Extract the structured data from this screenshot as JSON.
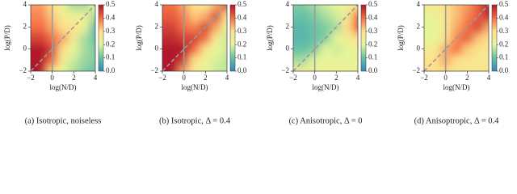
{
  "chart_data": [
    {
      "type": "contour",
      "xlabel": "log(N/D)",
      "ylabel": "log(P/D)",
      "caption": "(a) Isotropic, noiseless",
      "xlim": [
        -2,
        4
      ],
      "ylim": [
        -2,
        4
      ],
      "xticks": [
        {
          "value": -2,
          "label": "−2"
        },
        0,
        2,
        4
      ],
      "yticks": [
        {
          "value": -2,
          "label": "−2"
        },
        0,
        2,
        4
      ],
      "clim": [
        0,
        0.5
      ],
      "cticks": [
        {
          "value": 0,
          "label": "0.0"
        },
        0.1,
        0.2,
        0.3,
        0.4,
        0.5
      ],
      "colorscale": [
        "#3288bd",
        "#66c2a5",
        "#e6f598",
        "#fee08b",
        "#f46d43",
        "#b2182b"
      ],
      "vline": 0,
      "diagonal": true,
      "x": [
        -2,
        -1,
        0,
        1,
        2,
        3,
        4
      ],
      "y": [
        -2,
        -1,
        0,
        1,
        2,
        3,
        4
      ],
      "z": [
        [
          0.5,
          0.5,
          0.3,
          0.2,
          0.15,
          0.12,
          0.1
        ],
        [
          0.5,
          0.5,
          0.4,
          0.25,
          0.18,
          0.14,
          0.12
        ],
        [
          0.5,
          0.5,
          0.45,
          0.3,
          0.2,
          0.15,
          0.12
        ],
        [
          0.45,
          0.45,
          0.4,
          0.35,
          0.25,
          0.15,
          0.1
        ],
        [
          0.4,
          0.4,
          0.35,
          0.3,
          0.3,
          0.2,
          0.08
        ],
        [
          0.38,
          0.38,
          0.32,
          0.25,
          0.22,
          0.25,
          0.15
        ],
        [
          0.36,
          0.36,
          0.3,
          0.22,
          0.15,
          0.15,
          0.2
        ]
      ]
    },
    {
      "type": "contour",
      "xlabel": "log(N/D)",
      "ylabel": "log(P/D)",
      "caption": "(b) Isotropic, Δ = 0.4",
      "xlim": [
        -2,
        4
      ],
      "ylim": [
        -2,
        4
      ],
      "xticks": [
        {
          "value": -2,
          "label": "−2"
        },
        0,
        2,
        4
      ],
      "yticks": [
        {
          "value": -2,
          "label": "−2"
        },
        0,
        2,
        4
      ],
      "clim": [
        0,
        0.5
      ],
      "cticks": [
        {
          "value": 0,
          "label": "0.0"
        },
        0.1,
        0.2,
        0.3,
        0.4,
        0.5
      ],
      "colorscale": [
        "#3288bd",
        "#66c2a5",
        "#e6f598",
        "#fee08b",
        "#f46d43",
        "#b2182b"
      ],
      "vline": 0,
      "diagonal": true,
      "x": [
        -2,
        -1,
        0,
        1,
        2,
        3,
        4
      ],
      "y": [
        -2,
        -1,
        0,
        1,
        2,
        3,
        4
      ],
      "z": [
        [
          0.5,
          0.5,
          0.35,
          0.25,
          0.2,
          0.18,
          0.16
        ],
        [
          0.5,
          0.5,
          0.45,
          0.3,
          0.22,
          0.19,
          0.17
        ],
        [
          0.5,
          0.5,
          0.5,
          0.4,
          0.28,
          0.2,
          0.18
        ],
        [
          0.48,
          0.48,
          0.45,
          0.45,
          0.4,
          0.25,
          0.18
        ],
        [
          0.45,
          0.45,
          0.4,
          0.38,
          0.45,
          0.35,
          0.2
        ],
        [
          0.42,
          0.42,
          0.38,
          0.32,
          0.35,
          0.45,
          0.3
        ],
        [
          0.4,
          0.4,
          0.35,
          0.3,
          0.28,
          0.35,
          0.45
        ]
      ]
    },
    {
      "type": "contour",
      "xlabel": "log(N/D)",
      "ylabel": "log(P/D)",
      "caption": "(c) Anisotropic, Δ = 0",
      "xlim": [
        -2,
        4
      ],
      "ylim": [
        -2,
        4
      ],
      "xticks": [
        {
          "value": -2,
          "label": "−2"
        },
        0,
        2,
        4
      ],
      "yticks": [
        {
          "value": -2,
          "label": "−2"
        },
        0,
        2,
        4
      ],
      "clim": [
        0,
        0.5
      ],
      "cticks": [
        {
          "value": 0,
          "label": "0.0"
        },
        0.1,
        0.2,
        0.3,
        0.4,
        0.5
      ],
      "colorscale": [
        "#3288bd",
        "#66c2a5",
        "#e6f598",
        "#fee08b",
        "#f46d43",
        "#b2182b"
      ],
      "vline": 0,
      "diagonal": true,
      "x": [
        -2,
        -1,
        0,
        1,
        2,
        3,
        4
      ],
      "y": [
        -2,
        -1,
        0,
        1,
        2,
        3,
        4
      ],
      "z": [
        [
          0.25,
          0.25,
          0.22,
          0.22,
          0.22,
          0.22,
          0.22
        ],
        [
          0.15,
          0.15,
          0.2,
          0.2,
          0.2,
          0.2,
          0.2
        ],
        [
          0.1,
          0.1,
          0.12,
          0.2,
          0.18,
          0.2,
          0.22
        ],
        [
          0.08,
          0.08,
          0.1,
          0.12,
          0.2,
          0.25,
          0.3
        ],
        [
          0.08,
          0.08,
          0.1,
          0.12,
          0.15,
          0.3,
          0.42
        ],
        [
          0.1,
          0.1,
          0.12,
          0.15,
          0.18,
          0.25,
          0.4
        ],
        [
          0.12,
          0.12,
          0.15,
          0.18,
          0.2,
          0.22,
          0.3
        ]
      ]
    },
    {
      "type": "contour",
      "xlabel": "log(N/D)",
      "ylabel": "log(P/D)",
      "caption": "(d) Anisoptropic, Δ = 0.4",
      "xlim": [
        -2,
        4
      ],
      "ylim": [
        -2,
        4
      ],
      "xticks": [
        {
          "value": -2,
          "label": "−2"
        },
        0,
        2,
        4
      ],
      "yticks": [
        {
          "value": -2,
          "label": "−2"
        },
        0,
        2,
        4
      ],
      "clim": [
        0,
        0.5
      ],
      "cticks": [
        {
          "value": 0,
          "label": "0.0"
        },
        0.1,
        0.2,
        0.3,
        0.4,
        0.5
      ],
      "colorscale": [
        "#3288bd",
        "#66c2a5",
        "#e6f598",
        "#fee08b",
        "#f46d43",
        "#b2182b"
      ],
      "vline": 0,
      "diagonal": true,
      "x": [
        -2,
        -1,
        0,
        1,
        2,
        3,
        4
      ],
      "y": [
        -2,
        -1,
        0,
        1,
        2,
        3,
        4
      ],
      "z": [
        [
          0.3,
          0.3,
          0.3,
          0.28,
          0.27,
          0.27,
          0.27
        ],
        [
          0.3,
          0.3,
          0.35,
          0.3,
          0.28,
          0.27,
          0.27
        ],
        [
          0.25,
          0.25,
          0.35,
          0.4,
          0.32,
          0.28,
          0.28
        ],
        [
          0.2,
          0.2,
          0.3,
          0.38,
          0.42,
          0.33,
          0.3
        ],
        [
          0.2,
          0.2,
          0.28,
          0.35,
          0.4,
          0.45,
          0.35
        ],
        [
          0.22,
          0.22,
          0.28,
          0.33,
          0.38,
          0.42,
          0.48
        ],
        [
          0.25,
          0.25,
          0.3,
          0.33,
          0.36,
          0.42,
          0.5
        ]
      ]
    }
  ]
}
